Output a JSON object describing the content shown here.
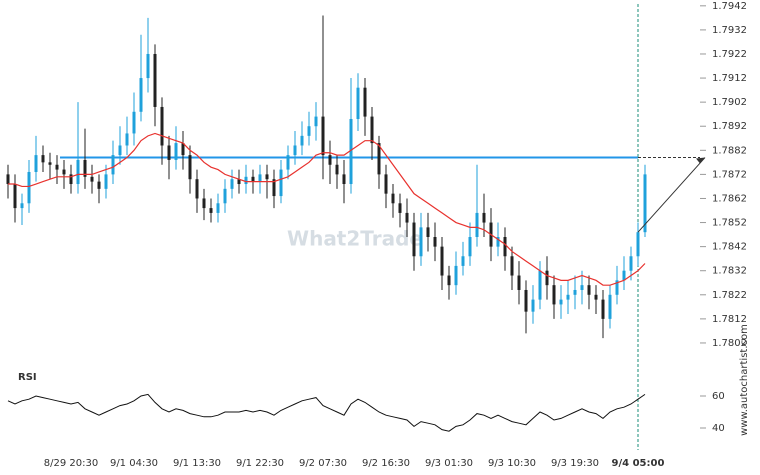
{
  "chart_data": [
    {
      "type": "candlestick",
      "categories": [
        null,
        null,
        null,
        null,
        null,
        null,
        null,
        null,
        null,
        "8/29 20:30",
        null,
        null,
        null,
        null,
        null,
        null,
        null,
        null,
        "9/1 04:30",
        null,
        null,
        null,
        null,
        null,
        null,
        null,
        null,
        "9/1 13:30",
        null,
        null,
        null,
        null,
        null,
        null,
        null,
        null,
        "9/1 22:30",
        null,
        null,
        null,
        null,
        null,
        null,
        null,
        null,
        "9/2 07:30",
        null,
        null,
        null,
        null,
        null,
        null,
        null,
        null,
        "9/2 16:30",
        null,
        null,
        null,
        null,
        null,
        null,
        null,
        null,
        "9/3 01:30",
        null,
        null,
        null,
        null,
        null,
        null,
        null,
        null,
        "9/3 10:30",
        null,
        null,
        null,
        null,
        null,
        null,
        null,
        null,
        "9/3 19:30",
        null,
        null,
        null,
        null,
        null,
        null,
        null,
        null,
        "9/4 05:00",
        null
      ],
      "open": [
        1.7872,
        1.7868,
        1.7858,
        1.786,
        1.7873,
        1.788,
        1.7877,
        1.7876,
        1.7874,
        1.7872,
        1.7868,
        1.7878,
        1.7871,
        1.7869,
        1.7866,
        1.7872,
        1.788,
        1.7884,
        1.7889,
        1.7898,
        1.7912,
        1.7922,
        1.79,
        1.7884,
        1.7878,
        1.7885,
        1.788,
        1.787,
        1.7862,
        1.7858,
        1.7856,
        1.786,
        1.7866,
        1.787,
        1.7868,
        1.7871,
        1.7869,
        1.7872,
        1.787,
        1.7863,
        1.7874,
        1.788,
        1.7884,
        1.7888,
        1.7892,
        1.7896,
        1.788,
        1.7876,
        1.7872,
        1.7868,
        1.7895,
        1.7908,
        1.7896,
        1.7885,
        1.7872,
        1.7864,
        1.786,
        1.7856,
        1.7852,
        1.7838,
        1.785,
        1.7846,
        1.7842,
        1.783,
        1.7826,
        1.7834,
        1.7838,
        1.7846,
        1.7856,
        1.7852,
        1.7842,
        1.7846,
        1.7838,
        1.783,
        1.7824,
        1.7815,
        1.782,
        1.7832,
        1.7826,
        1.7818,
        1.782,
        1.7822,
        1.7824,
        1.7826,
        1.7822,
        1.782,
        1.7812,
        1.7822,
        1.7828,
        1.7832,
        1.7838,
        1.7848
      ],
      "high": [
        1.7876,
        1.7872,
        1.7864,
        1.7878,
        1.7888,
        1.7884,
        1.7881,
        1.788,
        1.7878,
        1.7876,
        1.7902,
        1.7891,
        1.7876,
        1.7872,
        1.7876,
        1.7886,
        1.7892,
        1.7896,
        1.7906,
        1.793,
        1.7937,
        1.7926,
        1.7904,
        1.7888,
        1.7892,
        1.789,
        1.7884,
        1.7874,
        1.7866,
        1.7862,
        1.7864,
        1.787,
        1.7874,
        1.7874,
        1.7876,
        1.7874,
        1.7876,
        1.7876,
        1.7874,
        1.7878,
        1.7884,
        1.789,
        1.7894,
        1.7898,
        1.7902,
        1.7938,
        1.7886,
        1.788,
        1.7878,
        1.7912,
        1.7914,
        1.7912,
        1.79,
        1.7888,
        1.7876,
        1.7868,
        1.7864,
        1.7862,
        1.7856,
        1.7856,
        1.7856,
        1.7852,
        1.7846,
        1.7834,
        1.784,
        1.7844,
        1.7852,
        1.7876,
        1.7864,
        1.7858,
        1.7852,
        1.785,
        1.7842,
        1.7836,
        1.7828,
        1.7826,
        1.7836,
        1.7838,
        1.783,
        1.7826,
        1.7828,
        1.783,
        1.7832,
        1.783,
        1.7826,
        1.7824,
        1.7826,
        1.7834,
        1.7838,
        1.7842,
        1.7852,
        1.7876
      ],
      "low": [
        1.7862,
        1.7852,
        1.7851,
        1.7856,
        1.7869,
        1.7873,
        1.787,
        1.7868,
        1.7866,
        1.7864,
        1.7864,
        1.7866,
        1.7864,
        1.786,
        1.7862,
        1.7868,
        1.7876,
        1.788,
        1.7884,
        1.7894,
        1.7906,
        1.7892,
        1.7876,
        1.787,
        1.7874,
        1.7874,
        1.7864,
        1.7856,
        1.7853,
        1.7852,
        1.7852,
        1.7856,
        1.7862,
        1.7864,
        1.7864,
        1.7864,
        1.7864,
        1.7862,
        1.7858,
        1.786,
        1.787,
        1.7876,
        1.788,
        1.7884,
        1.7886,
        1.787,
        1.7868,
        1.7866,
        1.786,
        1.7864,
        1.789,
        1.7888,
        1.7878,
        1.7866,
        1.7858,
        1.7854,
        1.785,
        1.7846,
        1.7832,
        1.7834,
        1.784,
        1.7836,
        1.7824,
        1.782,
        1.7822,
        1.783,
        1.7834,
        1.7842,
        1.7846,
        1.7836,
        1.7838,
        1.7832,
        1.7824,
        1.7818,
        1.7806,
        1.781,
        1.7816,
        1.782,
        1.7812,
        1.7812,
        1.7814,
        1.7816,
        1.7818,
        1.7816,
        1.7814,
        1.7804,
        1.7808,
        1.7818,
        1.7824,
        1.7828,
        1.7834,
        1.7846
      ],
      "close": [
        1.7868,
        1.7858,
        1.786,
        1.7873,
        1.788,
        1.7877,
        1.7876,
        1.7874,
        1.7872,
        1.7868,
        1.7878,
        1.7871,
        1.7869,
        1.7866,
        1.7872,
        1.788,
        1.7884,
        1.7889,
        1.7898,
        1.7912,
        1.7922,
        1.79,
        1.7884,
        1.7878,
        1.7885,
        1.788,
        1.787,
        1.7862,
        1.7858,
        1.7856,
        1.786,
        1.7866,
        1.787,
        1.7868,
        1.7871,
        1.7869,
        1.7872,
        1.787,
        1.7863,
        1.7874,
        1.788,
        1.7884,
        1.7888,
        1.7892,
        1.7896,
        1.788,
        1.7876,
        1.7872,
        1.7868,
        1.7895,
        1.7908,
        1.7896,
        1.7885,
        1.7872,
        1.7864,
        1.786,
        1.7856,
        1.7852,
        1.7838,
        1.785,
        1.7846,
        1.7842,
        1.783,
        1.7826,
        1.7834,
        1.7838,
        1.7846,
        1.7856,
        1.7852,
        1.7842,
        1.7846,
        1.7838,
        1.783,
        1.7824,
        1.7815,
        1.782,
        1.7832,
        1.7826,
        1.7818,
        1.782,
        1.7822,
        1.7824,
        1.7826,
        1.7822,
        1.782,
        1.7812,
        1.7822,
        1.7828,
        1.7832,
        1.7838,
        1.7848,
        1.7872
      ],
      "up_color": "#1fa1db",
      "down_color": "#222222",
      "moving_average": {
        "color": "#e8322e",
        "values": [
          1.7868,
          1.7868,
          1.7867,
          1.7867,
          1.7868,
          1.7869,
          1.787,
          1.7871,
          1.7871,
          1.7871,
          1.7872,
          1.7872,
          1.7872,
          1.7873,
          1.7874,
          1.7875,
          1.7877,
          1.7879,
          1.7882,
          1.7886,
          1.7888,
          1.7889,
          1.7888,
          1.7887,
          1.7886,
          1.7885,
          1.7882,
          1.788,
          1.7877,
          1.7875,
          1.7874,
          1.7872,
          1.7871,
          1.787,
          1.7869,
          1.7869,
          1.7869,
          1.7869,
          1.7869,
          1.787,
          1.7871,
          1.7873,
          1.7875,
          1.7877,
          1.788,
          1.7881,
          1.7881,
          1.788,
          1.788,
          1.7882,
          1.7884,
          1.7886,
          1.7886,
          1.7884,
          1.788,
          1.7876,
          1.7872,
          1.7868,
          1.7864,
          1.7862,
          1.786,
          1.7858,
          1.7856,
          1.7854,
          1.7852,
          1.7851,
          1.785,
          1.785,
          1.7849,
          1.7847,
          1.7845,
          1.7843,
          1.784,
          1.7838,
          1.7836,
          1.7834,
          1.7832,
          1.783,
          1.7829,
          1.7828,
          1.7828,
          1.7829,
          1.783,
          1.7829,
          1.7828,
          1.7826,
          1.7826,
          1.7827,
          1.7828,
          1.783,
          1.7832,
          1.7835
        ]
      },
      "level": 1.7879,
      "level_color": "#2196e8",
      "ylim": [
        1.7797,
        1.7944
      ],
      "yticks": [
        1.7942,
        1.7932,
        1.7922,
        1.7912,
        1.7902,
        1.7892,
        1.7882,
        1.7872,
        1.7862,
        1.7852,
        1.7842,
        1.7832,
        1.7822,
        1.7812,
        1.7802
      ]
    },
    {
      "type": "line",
      "title": "RSI",
      "color": "#111111",
      "values": [
        57,
        55,
        57,
        58,
        60,
        59,
        58,
        57,
        56,
        55,
        56,
        52,
        50,
        48,
        50,
        52,
        54,
        55,
        57,
        60,
        61,
        56,
        52,
        50,
        52,
        51,
        49,
        48,
        47,
        47,
        48,
        50,
        50,
        50,
        51,
        50,
        51,
        50,
        48,
        51,
        53,
        55,
        57,
        58,
        59,
        54,
        52,
        50,
        48,
        55,
        58,
        56,
        53,
        50,
        48,
        47,
        46,
        45,
        41,
        44,
        43,
        42,
        39,
        38,
        41,
        42,
        45,
        49,
        48,
        46,
        48,
        46,
        44,
        43,
        42,
        46,
        50,
        48,
        45,
        46,
        48,
        50,
        52,
        50,
        49,
        46,
        50,
        52,
        53,
        55,
        58,
        61
      ],
      "ylim": [
        30,
        80
      ],
      "yticks": [
        60,
        40
      ]
    }
  ],
  "watermark": "What2Trade",
  "source": "www.autochartist.com"
}
